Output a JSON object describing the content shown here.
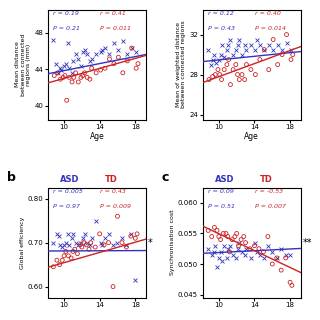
{
  "chart_data": [
    {
      "type": "scatter",
      "xlabel": "Age",
      "ylabel": "Mean distance\nbetween connected\nregions (mm)",
      "xlim": [
        8.2,
        19.2
      ],
      "ylim": [
        38.5,
        50.5
      ],
      "xticks": [
        10,
        14,
        18
      ],
      "yticks": [
        40,
        44,
        48
      ],
      "series": [
        {
          "color": "#3333bb",
          "marker": "x",
          "x": [
            8.8,
            9.1,
            9.3,
            9.5,
            9.7,
            10.0,
            10.2,
            10.4,
            10.6,
            10.9,
            11.0,
            11.3,
            11.6,
            11.9,
            12.1,
            12.3,
            12.6,
            12.9,
            13.1,
            13.6,
            14.1,
            14.3,
            14.6,
            15.1,
            15.6,
            16.1,
            16.6,
            17.1,
            17.6,
            18.1
          ],
          "values": [
            47.2,
            44.6,
            43.6,
            44.1,
            43.9,
            44.3,
            44.6,
            46.9,
            44.1,
            43.6,
            44.9,
            45.6,
            45.1,
            44.3,
            45.9,
            46.1,
            45.6,
            44.9,
            45.1,
            45.6,
            45.9,
            46.1,
            46.3,
            45.6,
            46.9,
            46.1,
            47.1,
            45.6,
            46.3,
            45.9
          ]
        },
        {
          "color": "#cc2222",
          "marker": "o",
          "x": [
            8.9,
            9.3,
            9.6,
            9.9,
            10.1,
            10.3,
            10.6,
            10.9,
            11.1,
            11.3,
            11.6,
            11.9,
            12.1,
            12.3,
            12.6,
            12.9,
            13.1,
            13.6,
            14.1,
            14.6,
            15.1,
            15.6,
            16.1,
            16.6,
            17.1,
            17.6,
            18.1,
            18.3
          ],
          "values": [
            43.3,
            43.6,
            42.9,
            43.1,
            43.3,
            40.6,
            43.1,
            42.6,
            43.1,
            43.6,
            42.6,
            43.1,
            43.3,
            43.6,
            43.1,
            42.9,
            44.1,
            43.6,
            43.9,
            44.1,
            45.1,
            44.6,
            45.3,
            43.6,
            44.9,
            46.3,
            44.1,
            44.6
          ]
        },
        {
          "type": "line",
          "color": "#3333bb",
          "x": [
            8.2,
            19.2
          ],
          "values": [
            43.5,
            45.6
          ]
        },
        {
          "type": "line",
          "color": "#cc2222",
          "x": [
            8.2,
            19.2
          ],
          "values": [
            42.5,
            45.5
          ]
        }
      ],
      "annotations": [
        {
          "text": "r = 0.19",
          "color": "#3333bb"
        },
        {
          "text": "P = 0.21",
          "color": "#3333bb"
        },
        {
          "text": "r = 0.41",
          "color": "#cc2222"
        },
        {
          "text": "P = 0.011",
          "color": "#cc2222"
        }
      ]
    },
    {
      "type": "scatter",
      "xlabel": "Age",
      "ylabel": "Mean of weighted distance\nbetween connected regions",
      "xlim": [
        8.2,
        19.2
      ],
      "ylim": [
        23.5,
        34.5
      ],
      "xticks": [
        10,
        14,
        18
      ],
      "yticks": [
        24,
        28,
        32
      ],
      "series": [
        {
          "color": "#3333bb",
          "marker": "x",
          "x": [
            8.8,
            9.1,
            9.3,
            9.5,
            9.7,
            10.0,
            10.2,
            10.4,
            10.6,
            10.9,
            11.0,
            11.3,
            11.6,
            11.9,
            12.1,
            12.3,
            12.6,
            12.9,
            13.1,
            13.6,
            14.1,
            14.3,
            14.6,
            15.1,
            15.6,
            16.1,
            16.6,
            17.1,
            17.6,
            18.1
          ],
          "values": [
            30.5,
            29.0,
            29.5,
            30.0,
            29.2,
            29.5,
            30.0,
            31.0,
            29.8,
            30.5,
            31.0,
            31.5,
            30.0,
            30.5,
            31.0,
            31.5,
            30.0,
            31.0,
            30.5,
            31.0,
            30.5,
            31.5,
            31.0,
            30.5,
            31.0,
            30.5,
            31.0,
            30.5,
            31.2,
            30.5
          ]
        },
        {
          "color": "#cc2222",
          "marker": "o",
          "x": [
            8.9,
            9.3,
            9.6,
            9.9,
            10.1,
            10.3,
            10.6,
            10.9,
            11.1,
            11.3,
            11.6,
            11.9,
            12.1,
            12.3,
            12.6,
            12.9,
            13.1,
            13.6,
            14.1,
            14.6,
            15.1,
            15.6,
            16.1,
            16.6,
            17.1,
            17.6,
            18.1,
            18.3
          ],
          "values": [
            27.5,
            27.8,
            28.0,
            28.5,
            28.0,
            27.5,
            28.5,
            29.0,
            29.5,
            27.0,
            28.5,
            29.0,
            28.0,
            27.5,
            28.0,
            27.5,
            29.0,
            28.5,
            28.0,
            29.5,
            30.5,
            28.5,
            31.5,
            29.0,
            30.0,
            32.0,
            29.5,
            30.0
          ]
        },
        {
          "type": "line",
          "color": "#3333bb",
          "x": [
            8.2,
            19.2
          ],
          "values": [
            29.3,
            30.3
          ]
        },
        {
          "type": "line",
          "color": "#cc2222",
          "x": [
            8.2,
            19.2
          ],
          "values": [
            27.2,
            30.8
          ]
        }
      ],
      "annotations": [
        {
          "text": "r = 0.12",
          "color": "#3333bb"
        },
        {
          "text": "P = 0.43",
          "color": "#3333bb"
        },
        {
          "text": "r = 0.40",
          "color": "#cc2222"
        },
        {
          "text": "P = 0.014",
          "color": "#cc2222"
        }
      ]
    },
    {
      "type": "scatter",
      "title": "b",
      "ylabel": "Global efficiency",
      "xlim": [
        8.2,
        19.2
      ],
      "ylim": [
        0.575,
        0.825
      ],
      "xticks": [
        10,
        14,
        18
      ],
      "yticks": [
        {
          "value": 0.6,
          "label": "0.60"
        },
        {
          "value": 0.7,
          "label": "0.70"
        },
        {
          "value": 0.8,
          "label": "0.80"
        }
      ],
      "series": [
        {
          "name": "ASD",
          "color": "#3333bb",
          "marker": "x",
          "x": [
            8.8,
            9.2,
            9.4,
            9.6,
            9.8,
            10.0,
            10.2,
            10.4,
            10.6,
            10.9,
            11.0,
            11.3,
            11.6,
            11.9,
            12.1,
            12.3,
            12.6,
            12.9,
            13.1,
            13.6,
            14.1,
            14.3,
            14.6,
            15.1,
            15.5,
            16.0,
            16.5,
            17.0,
            17.5,
            18.0
          ],
          "values": [
            0.7,
            0.72,
            0.715,
            0.695,
            0.69,
            0.695,
            0.7,
            0.72,
            0.695,
            0.71,
            0.72,
            0.7,
            0.695,
            0.7,
            0.71,
            0.72,
            0.7,
            0.695,
            0.71,
            0.75,
            0.7,
            0.695,
            0.71,
            0.72,
            0.695,
            0.7,
            0.71,
            0.695,
            0.72,
            0.615
          ]
        },
        {
          "name": "TD",
          "color": "#cc2222",
          "marker": "o",
          "x": [
            8.8,
            9.2,
            9.5,
            9.8,
            10.0,
            10.2,
            10.5,
            10.8,
            11.0,
            11.2,
            11.5,
            11.8,
            12.0,
            12.2,
            12.5,
            12.8,
            13.0,
            13.5,
            14.0,
            14.5,
            15.0,
            15.5,
            16.0,
            16.5,
            17.0,
            17.5,
            18.0,
            18.2
          ],
          "values": [
            0.645,
            0.66,
            0.65,
            0.66,
            0.67,
            0.68,
            0.67,
            0.665,
            0.68,
            0.685,
            0.675,
            0.695,
            0.69,
            0.7,
            0.695,
            0.685,
            0.7,
            0.69,
            0.72,
            0.695,
            0.7,
            0.6,
            0.76,
            0.7,
            0.69,
            0.715,
            0.71,
            0.72
          ]
        },
        {
          "type": "line",
          "color": "#3333bb",
          "x": [
            8.2,
            19.2
          ],
          "values": [
            0.681,
            0.682
          ]
        },
        {
          "type": "line",
          "color": "#cc2222",
          "x": [
            8.2,
            19.2
          ],
          "values": [
            0.644,
            0.708
          ]
        }
      ],
      "annotations": [
        {
          "text": "r = 0.005",
          "color": "#3333bb"
        },
        {
          "text": "P = 0.97",
          "color": "#3333bb"
        },
        {
          "text": "r = 0.43",
          "color": "#cc2222"
        },
        {
          "text": "P = 0.009",
          "color": "#cc2222"
        },
        {
          "text": "*"
        }
      ]
    },
    {
      "type": "scatter",
      "title": "c",
      "ylabel": "Synchronisation cost",
      "xlim": [
        8.2,
        19.2
      ],
      "ylim": [
        0.0445,
        0.0625
      ],
      "xticks": [
        10,
        14,
        18
      ],
      "yticks": [
        0.045,
        {
          "value": 0.05,
          "label": "0.050"
        },
        0.055,
        {
          "value": 0.06,
          "label": "0.060"
        }
      ],
      "series": [
        {
          "name": "ASD",
          "color": "#3333bb",
          "marker": "x",
          "x": [
            8.8,
            9.2,
            9.4,
            9.6,
            9.8,
            10.0,
            10.2,
            10.4,
            10.6,
            10.9,
            11.0,
            11.3,
            11.6,
            11.9,
            12.1,
            12.3,
            12.6,
            12.9,
            13.1,
            13.6,
            14.1,
            14.3,
            14.6,
            15.1,
            15.5,
            16.0,
            16.5,
            17.0,
            17.5,
            18.0
          ],
          "values": [
            0.0525,
            0.0515,
            0.052,
            0.053,
            0.0495,
            0.051,
            0.052,
            0.0505,
            0.053,
            0.051,
            0.0525,
            0.053,
            0.0515,
            0.051,
            0.0525,
            0.0535,
            0.052,
            0.0515,
            0.0525,
            0.051,
            0.0535,
            0.052,
            0.0515,
            0.051,
            0.053,
            0.052,
            0.051,
            0.0525,
            0.0515,
            0.0515
          ]
        },
        {
          "name": "TD",
          "color": "#cc2222",
          "marker": "o",
          "x": [
            8.8,
            9.2,
            9.5,
            9.8,
            10.0,
            10.2,
            10.5,
            10.8,
            11.0,
            11.2,
            11.5,
            11.8,
            12.0,
            12.2,
            12.5,
            12.8,
            13.0,
            13.5,
            14.0,
            14.5,
            15.0,
            15.5,
            16.0,
            16.5,
            17.0,
            17.5,
            18.0,
            18.2
          ],
          "values": [
            0.0555,
            0.0545,
            0.056,
            0.0555,
            0.0545,
            0.054,
            0.055,
            0.055,
            0.0545,
            0.052,
            0.054,
            0.0545,
            0.055,
            0.053,
            0.054,
            0.0545,
            0.0535,
            0.0525,
            0.053,
            0.0525,
            0.052,
            0.0545,
            0.05,
            0.051,
            0.049,
            0.051,
            0.047,
            0.0465
          ]
        },
        {
          "type": "line",
          "color": "#3333bb",
          "x": [
            8.2,
            19.2
          ],
          "values": [
            0.05175,
            0.05255
          ]
        },
        {
          "type": "line",
          "color": "#cc2222",
          "x": [
            8.2,
            19.2
          ],
          "values": [
            0.0562,
            0.0486
          ]
        }
      ],
      "annotations": [
        {
          "text": "r = 0.09",
          "color": "#3333bb"
        },
        {
          "text": "P = 0.51",
          "color": "#3333bb"
        },
        {
          "text": "r = -0.53",
          "color": "#cc2222"
        },
        {
          "text": "P = 0.007",
          "color": "#cc2222"
        },
        {
          "text": "**"
        }
      ]
    }
  ]
}
